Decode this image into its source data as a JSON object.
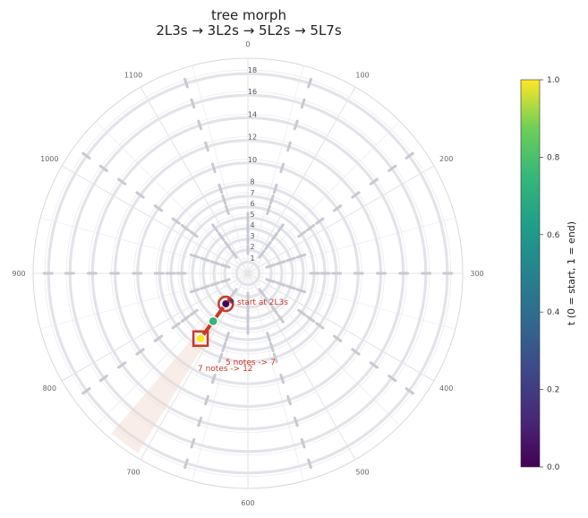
{
  "chart_data": {
    "type": "scatter",
    "title": "tree morph",
    "subtitle": "2L3s  →  3L2s  →  5L2s  →  5L7s",
    "angular_ticks": [
      "0",
      "100",
      "200",
      "300",
      "400",
      "500",
      "600",
      "700",
      "800",
      "900",
      "1000",
      "1100"
    ],
    "radial_ticks": [
      "1",
      "2",
      "3",
      "4",
      "5",
      "6",
      "7",
      "8",
      "10",
      "12",
      "14",
      "16",
      "18"
    ],
    "grid": true,
    "path": {
      "color": "#c8382a",
      "points": [
        {
          "cents": 720,
          "r": 2.5,
          "t": 0.0
        },
        {
          "cents": 720,
          "r": 3.0,
          "t": 0.05
        },
        {
          "cents": 720,
          "r": 5.0,
          "t": 0.5
        },
        {
          "cents": 720,
          "r": 7.0,
          "t": 1.0
        }
      ]
    },
    "annotations": [
      {
        "text": "start at 2L3s"
      },
      {
        "text": "5 notes -> 7"
      },
      {
        "text": "7 notes -> 12"
      }
    ],
    "colorbar": {
      "label": "t  (0 = start, 1 = end)",
      "ticks": [
        "0.0",
        "0.2",
        "0.4",
        "0.6",
        "0.8",
        "1.0"
      ],
      "colormap": "viridis"
    }
  }
}
